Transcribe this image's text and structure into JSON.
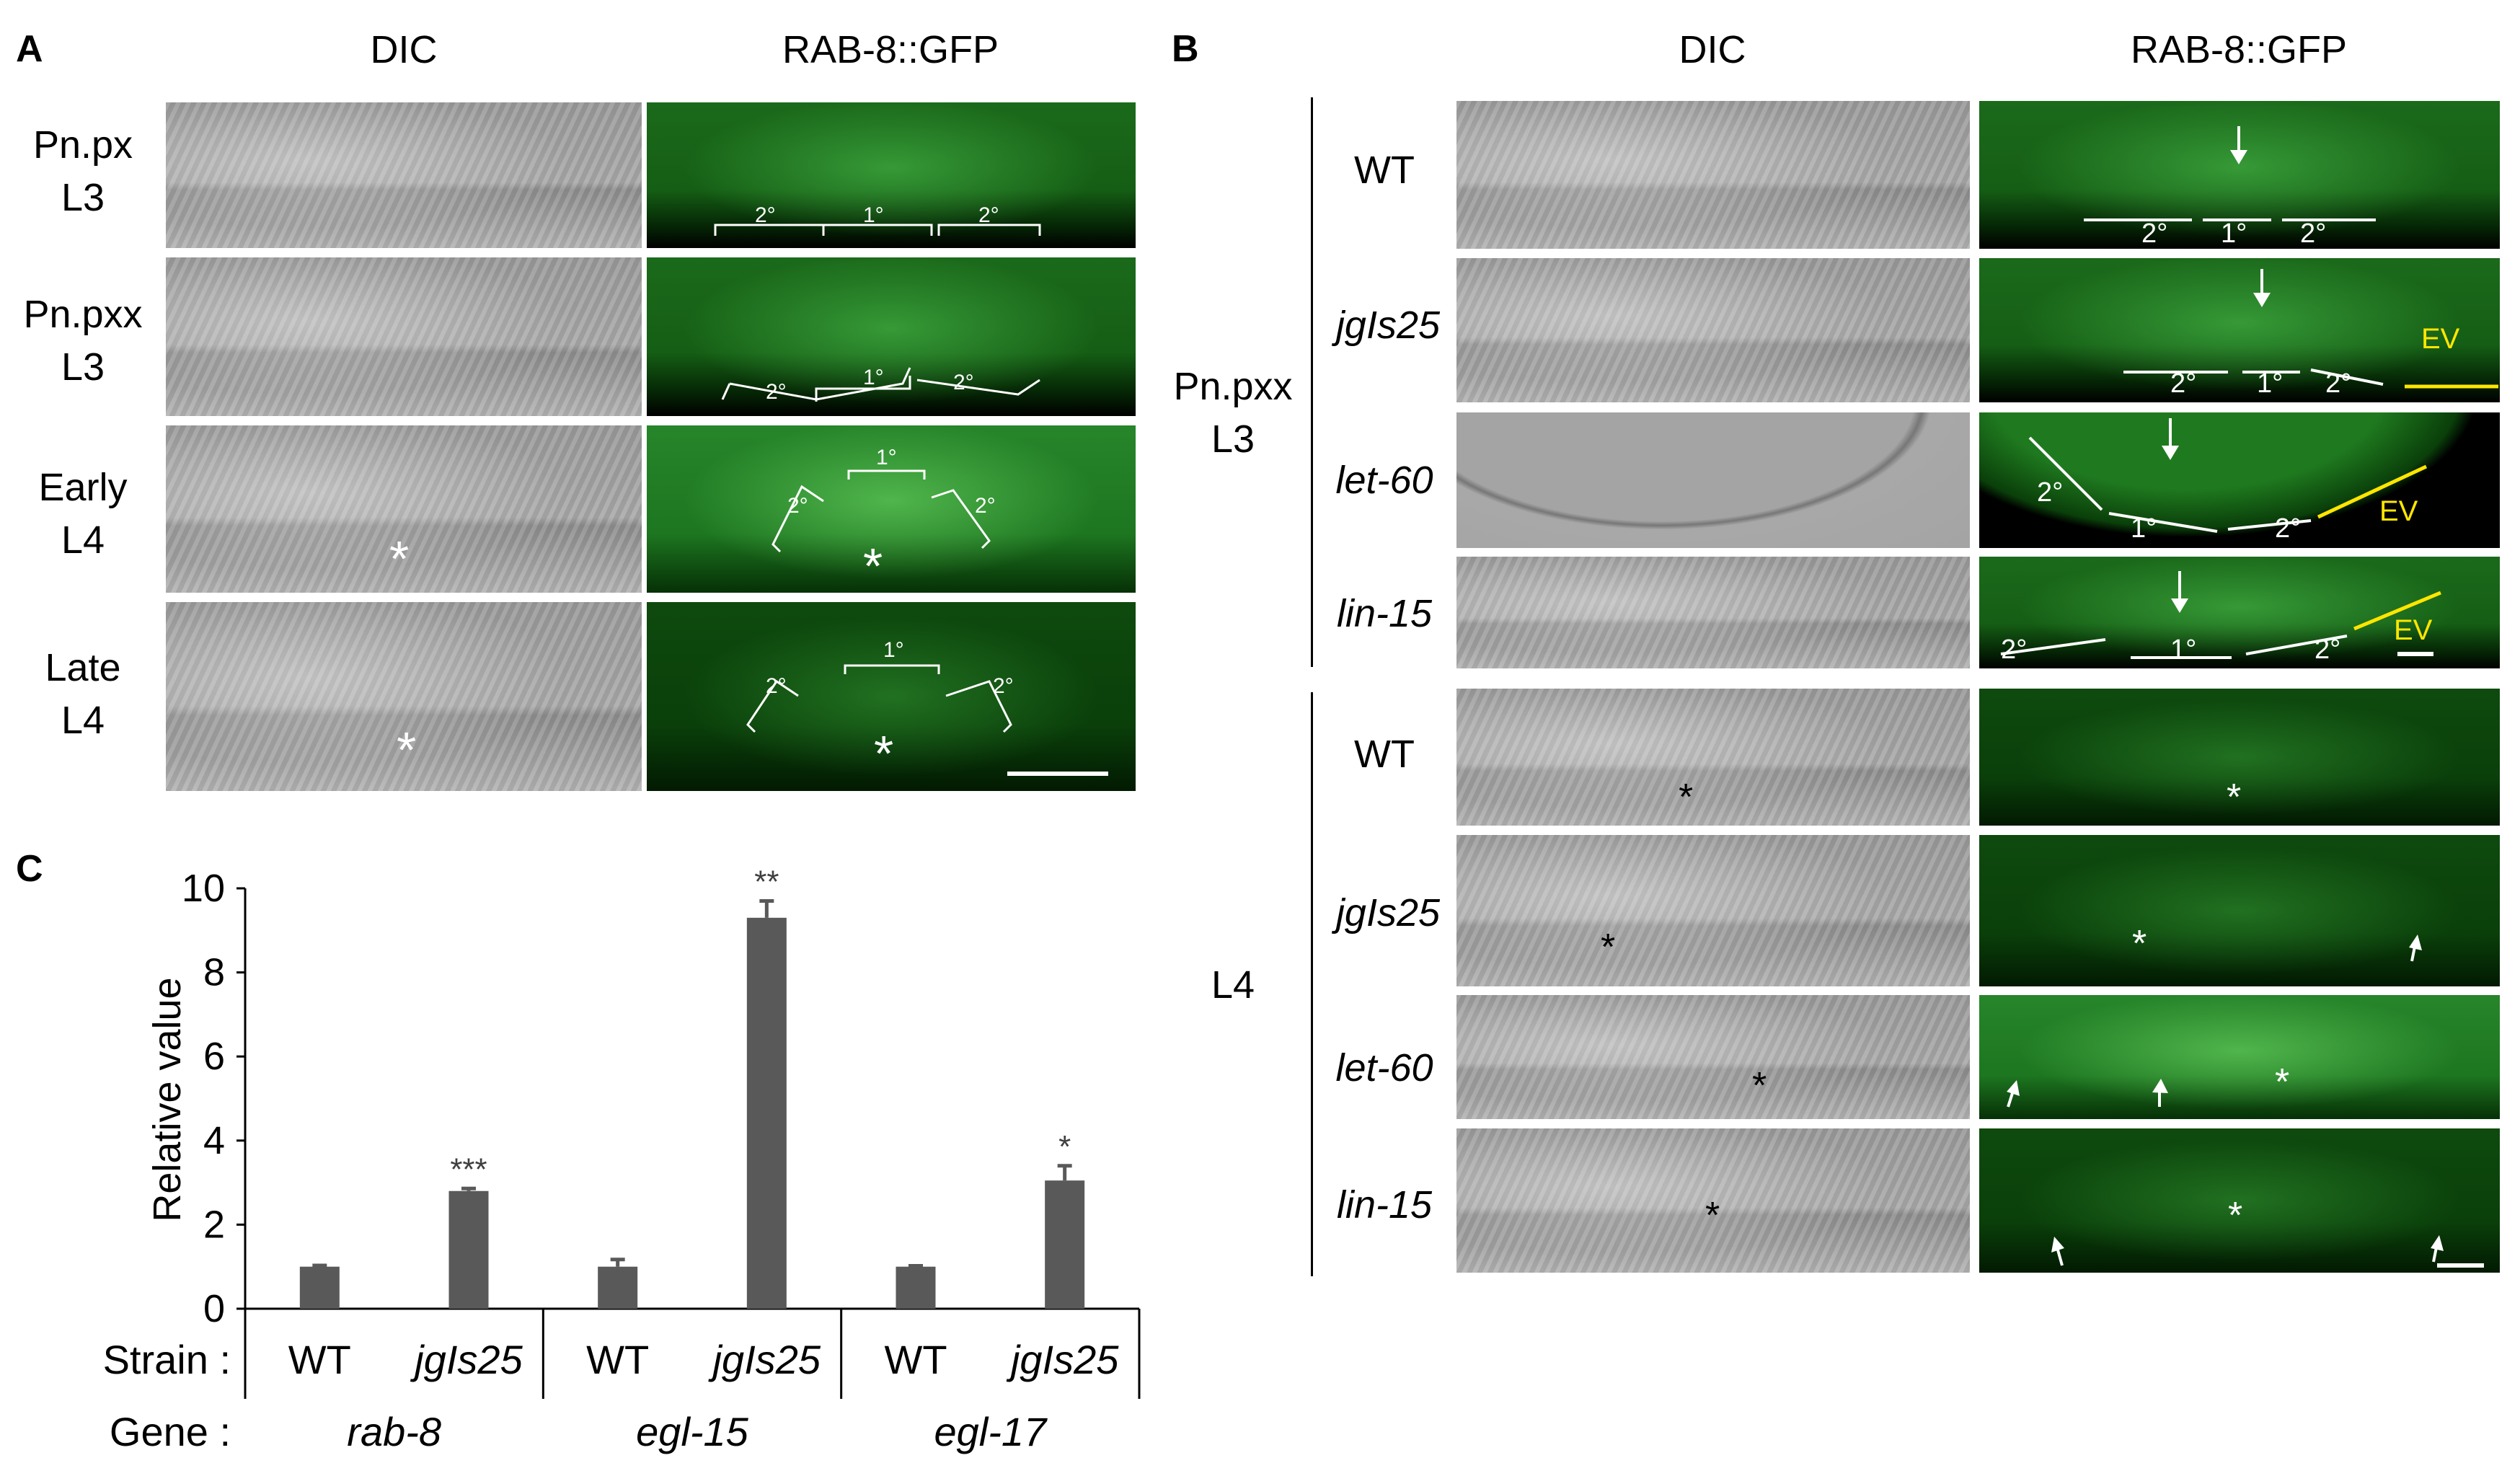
{
  "panelA": {
    "letter": "A",
    "col_dic": "DIC",
    "col_gfp": "RAB-8::GFP",
    "rows": [
      {
        "line1": "Pn.px",
        "line2": "L3",
        "brackets": [
          "2°",
          "1°",
          "2°"
        ]
      },
      {
        "line1": "Pn.pxx",
        "line2": "L3",
        "brackets": [
          "2°",
          "1°",
          "2°"
        ]
      },
      {
        "line1": "Early",
        "line2": "L4",
        "brackets": [
          "2°",
          "1°",
          "2°"
        ]
      },
      {
        "line1": "Late",
        "line2": "L4",
        "brackets": [
          "2°",
          "1°",
          "2°"
        ]
      }
    ]
  },
  "panelB": {
    "letter": "B",
    "col_dic": "DIC",
    "col_gfp": "RAB-8::GFP",
    "group1": {
      "line1": "Pn.pxx",
      "line2": "L3"
    },
    "group2": "L4",
    "strains": [
      "WT",
      "jgIs25",
      "let-60",
      "lin-15"
    ],
    "ev_label": "EV",
    "cell_labels": [
      "2°",
      "1°",
      "2°"
    ]
  },
  "panelC": {
    "letter": "C",
    "strain_label": "Strain :",
    "gene_label": "Gene :",
    "genes": [
      "rab-8",
      "egl-15",
      "egl-17"
    ]
  },
  "chart_data": {
    "type": "bar",
    "ylabel": "Relative value",
    "ylim": [
      0,
      10
    ],
    "yticks": [
      "0",
      "2",
      "4",
      "6",
      "8",
      "10"
    ],
    "categories": [
      "WT",
      "jgIs25",
      "WT",
      "jgIs25",
      "WT",
      "jgIs25"
    ],
    "groups": [
      "rab-8",
      "egl-15",
      "egl-17"
    ],
    "values": [
      1.0,
      2.8,
      1.0,
      9.3,
      1.0,
      3.05
    ],
    "errors": [
      0.03,
      0.06,
      0.17,
      0.4,
      0.02,
      0.35
    ],
    "significance": [
      "",
      "***",
      "",
      "**",
      "",
      "*"
    ],
    "bar_color": "#595959"
  }
}
